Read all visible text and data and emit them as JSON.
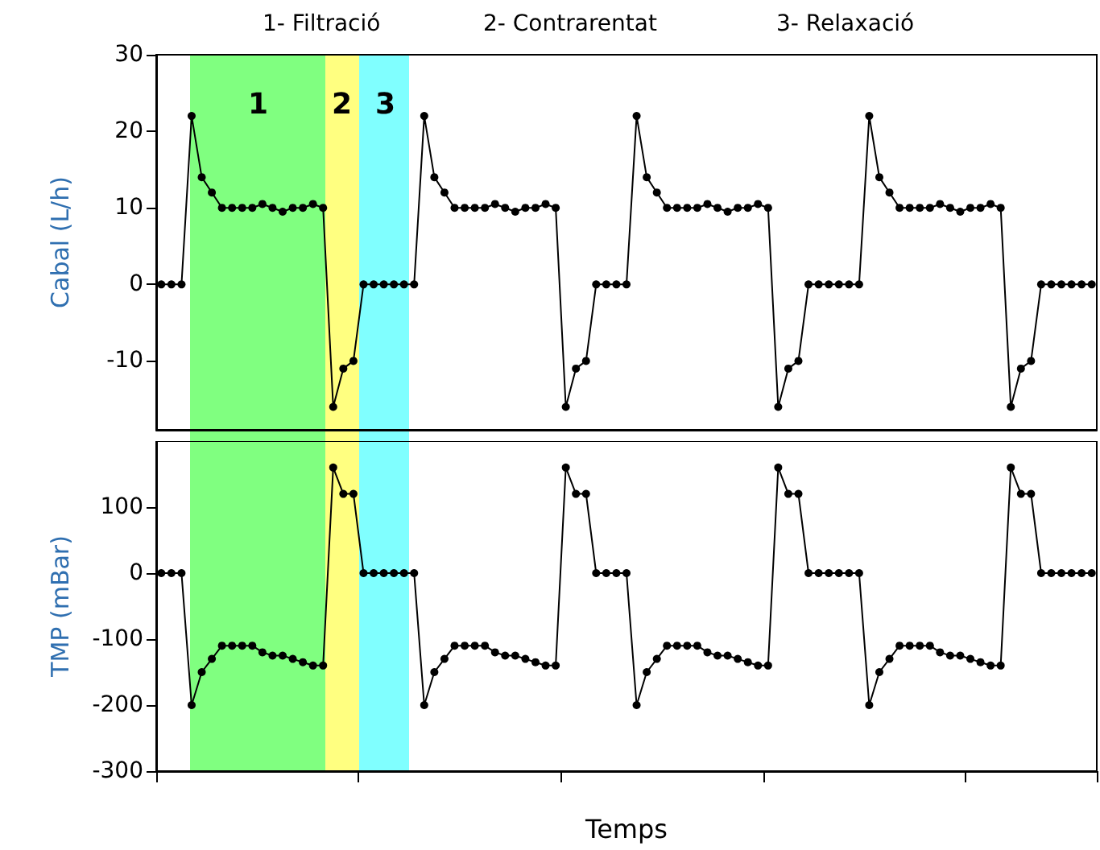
{
  "chart_data": [
    {
      "type": "line",
      "ylabel": "Cabal (L/h)",
      "annotations": [
        "1- Filtració",
        "2- Contrarentat",
        "3- Relaxació",
        "1",
        "2",
        "3"
      ],
      "categories": [
        null,
        null,
        null,
        null,
        null,
        null,
        null,
        null,
        null,
        null,
        null,
        null,
        null,
        null,
        null,
        null,
        null,
        null,
        null,
        null,
        null,
        null,
        null,
        null,
        null,
        null,
        null,
        null,
        null,
        null,
        null,
        null,
        null,
        null,
        null,
        null,
        null,
        null,
        null,
        null,
        null,
        null,
        null,
        null,
        null,
        null,
        null,
        null,
        null,
        null,
        null,
        null,
        null,
        null,
        null,
        null,
        null,
        null,
        null,
        null,
        null,
        null,
        null,
        null,
        null,
        null,
        null,
        null,
        null,
        null,
        null,
        null,
        null,
        null,
        null,
        null,
        null,
        null,
        null,
        null,
        null,
        null,
        null,
        null,
        null,
        null,
        null,
        null,
        null,
        null,
        null,
        null,
        null
      ],
      "series": [
        {
          "color": "#000000",
          "values": [
            0,
            0,
            0,
            22,
            14,
            12,
            10,
            10,
            10,
            10,
            10.5,
            10,
            9.5,
            10,
            10,
            10.5,
            10,
            -16,
            -11,
            -10,
            0,
            0,
            0,
            0,
            0,
            0,
            22,
            14,
            12,
            10,
            10,
            10,
            10,
            10.5,
            10,
            9.5,
            10,
            10,
            10.5,
            10,
            -16,
            -11,
            -10,
            0,
            0,
            0,
            0,
            22,
            14,
            12,
            10,
            10,
            10,
            10,
            10.5,
            10,
            9.5,
            10,
            10,
            10.5,
            10,
            -16,
            -11,
            -10,
            0,
            0,
            0,
            0,
            0,
            0,
            22,
            14,
            12,
            10,
            10,
            10,
            10,
            10.5,
            10,
            9.5,
            10,
            10,
            10.5,
            10,
            -16,
            -11,
            -10,
            0,
            0,
            0,
            0,
            0,
            0
          ]
        }
      ],
      "ylim": [
        -19,
        30
      ],
      "yticks": [
        -10,
        0,
        10,
        20,
        30
      ],
      "marker": "circle",
      "line_style": "solid"
    },
    {
      "type": "line",
      "ylabel": "TMP (mBar)",
      "xlabel": "Temps",
      "categories": [
        null,
        null,
        null,
        null,
        null,
        null,
        null,
        null,
        null,
        null,
        null,
        null,
        null,
        null,
        null,
        null,
        null,
        null,
        null,
        null,
        null,
        null,
        null,
        null,
        null,
        null,
        null,
        null,
        null,
        null,
        null,
        null,
        null,
        null,
        null,
        null,
        null,
        null,
        null,
        null,
        null,
        null,
        null,
        null,
        null,
        null,
        null,
        null,
        null,
        null,
        null,
        null,
        null,
        null,
        null,
        null,
        null,
        null,
        null,
        null,
        null,
        null,
        null,
        null,
        null,
        null,
        null,
        null,
        null,
        null,
        null,
        null,
        null,
        null,
        null,
        null,
        null,
        null,
        null,
        null,
        null,
        null,
        null,
        null,
        null,
        null,
        null,
        null,
        null,
        null,
        null,
        null,
        null
      ],
      "series": [
        {
          "color": "#000000",
          "values": [
            0,
            0,
            0,
            -200,
            -150,
            -130,
            -110,
            -110,
            -110,
            -110,
            -120,
            -125,
            -125,
            -130,
            -135,
            -140,
            -140,
            160,
            120,
            120,
            0,
            0,
            0,
            0,
            0,
            0,
            -200,
            -150,
            -130,
            -110,
            -110,
            -110,
            -110,
            -120,
            -125,
            -125,
            -130,
            -135,
            -140,
            -140,
            160,
            120,
            120,
            0,
            0,
            0,
            0,
            -200,
            -150,
            -130,
            -110,
            -110,
            -110,
            -110,
            -120,
            -125,
            -125,
            -130,
            -135,
            -140,
            -140,
            160,
            120,
            120,
            0,
            0,
            0,
            0,
            0,
            0,
            -200,
            -150,
            -130,
            -110,
            -110,
            -110,
            -110,
            -120,
            -125,
            -125,
            -130,
            -135,
            -140,
            -140,
            160,
            120,
            120,
            0,
            0,
            0,
            0,
            0,
            0
          ]
        }
      ],
      "ylim": [
        -300,
        200
      ],
      "yticks": [
        -300,
        -200,
        -100,
        0,
        100
      ],
      "marker": "circle",
      "line_style": "solid"
    }
  ]
}
